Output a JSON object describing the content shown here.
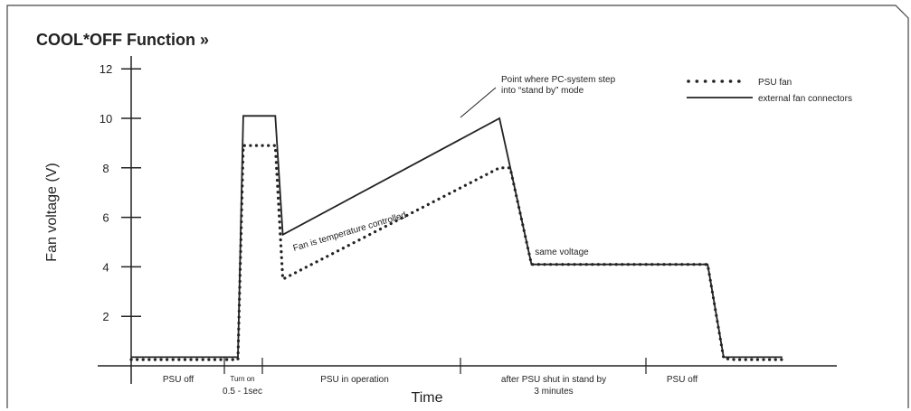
{
  "chart_data": {
    "type": "line",
    "title": "COOL*OFF Function »",
    "xlabel": "Time",
    "ylabel": "Fan voltage (V)",
    "ylim": [
      0,
      12
    ],
    "yticks": [
      2,
      4,
      6,
      8,
      10,
      12
    ],
    "grid": false,
    "legend_position": "top-right",
    "x_units": "relative time (unscaled)",
    "x_range": [
      0,
      10
    ],
    "series": [
      {
        "name": "PSU fan",
        "style": "dotted",
        "x": [
          0,
          1.0,
          1.05,
          1.1,
          1.35,
          1.42,
          3.45,
          3.55,
          3.75,
          5.4,
          5.55,
          5.65,
          6.1
        ],
        "y": [
          0.25,
          0.25,
          8.9,
          8.9,
          8.9,
          3.5,
          8.0,
          8.0,
          4.1,
          4.1,
          0.3,
          0.25,
          0.25
        ]
      },
      {
        "name": "external fan connectors",
        "style": "solid",
        "x": [
          0,
          1.0,
          1.05,
          1.2,
          1.35,
          1.42,
          3.45,
          3.75,
          5.4,
          5.55,
          6.1
        ],
        "y": [
          0.35,
          0.35,
          10.1,
          10.1,
          10.1,
          5.3,
          10.0,
          4.1,
          4.1,
          0.35,
          0.35
        ]
      }
    ],
    "phases": [
      {
        "label": "PSU off"
      },
      {
        "label": "Turn on",
        "sublabel": "0.5 - 1sec"
      },
      {
        "label": "PSU in operation"
      },
      {
        "label": "after PSU shut in stand by",
        "sublabel": "3 minutes"
      },
      {
        "label": "PSU off"
      }
    ],
    "annotations": [
      {
        "text_lines": [
          "Point where PC-system step",
          "into “stand by” mode"
        ]
      },
      {
        "text": "Fan is temperature controlled"
      },
      {
        "text": "same voltage"
      }
    ]
  },
  "colors": {
    "line": "#222222",
    "frame": "#444444",
    "background": "#ffffff"
  }
}
